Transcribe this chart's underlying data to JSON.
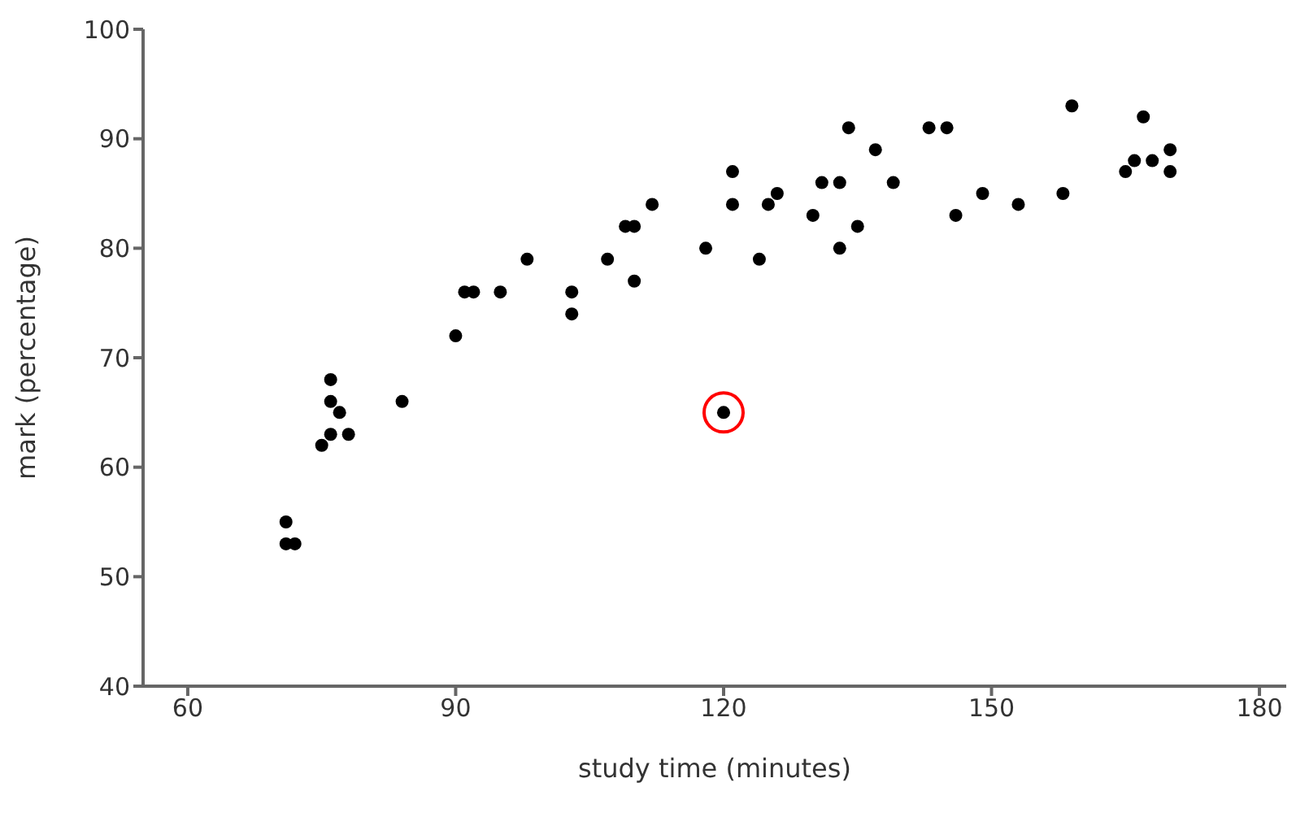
{
  "chart_data": {
    "type": "scatter",
    "xlabel": "study time (minutes)",
    "ylabel": "mark (percentage)",
    "xlim": [
      55,
      183
    ],
    "ylim": [
      40,
      100
    ],
    "xticks": [
      60,
      90,
      120,
      150,
      180
    ],
    "yticks": [
      40,
      50,
      60,
      70,
      80,
      90,
      100
    ],
    "grid": false,
    "legend": false,
    "marker": "circle",
    "series": [
      {
        "color": "#000000",
        "x": [
          71,
          71,
          72,
          75,
          76,
          78,
          77,
          76,
          76,
          84,
          90,
          91,
          92,
          95,
          98,
          103,
          103,
          107,
          109,
          110,
          110,
          112,
          118,
          121,
          121,
          124,
          125,
          126,
          130,
          131,
          133,
          133,
          134,
          135,
          137,
          139,
          143,
          145,
          146,
          149,
          153,
          158,
          159,
          165,
          166,
          168,
          170,
          170,
          167,
          120
        ],
        "values": [
          55,
          53,
          53,
          62,
          63,
          63,
          65,
          66,
          68,
          66,
          72,
          76,
          76,
          76,
          79,
          76,
          74,
          79,
          82,
          77,
          82,
          84,
          80,
          87,
          84,
          79,
          84,
          85,
          83,
          86,
          86,
          80,
          91,
          82,
          89,
          86,
          91,
          91,
          83,
          85,
          84,
          85,
          93,
          87,
          88,
          88,
          89,
          87,
          92,
          65
        ]
      },
      {
        "color": "#ff0000",
        "marker": "circle",
        "x": [
          120
        ],
        "values": [
          65
        ]
      }
    ]
  }
}
